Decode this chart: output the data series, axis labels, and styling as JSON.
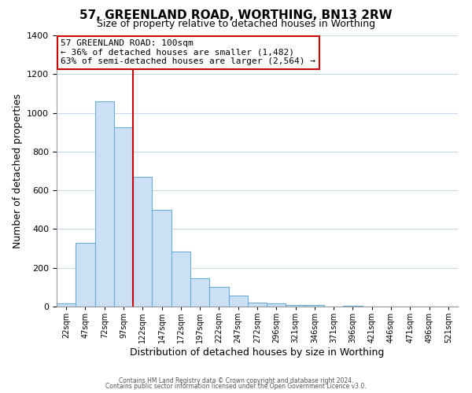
{
  "title": "57, GREENLAND ROAD, WORTHING, BN13 2RW",
  "subtitle": "Size of property relative to detached houses in Worthing",
  "xlabel": "Distribution of detached houses by size in Worthing",
  "ylabel": "Number of detached properties",
  "bar_labels": [
    "22sqm",
    "47sqm",
    "72sqm",
    "97sqm",
    "122sqm",
    "147sqm",
    "172sqm",
    "197sqm",
    "222sqm",
    "247sqm",
    "272sqm",
    "296sqm",
    "321sqm",
    "346sqm",
    "371sqm",
    "396sqm",
    "421sqm",
    "446sqm",
    "471sqm",
    "496sqm",
    "521sqm"
  ],
  "bar_values": [
    18,
    328,
    1060,
    925,
    670,
    500,
    285,
    148,
    100,
    55,
    20,
    15,
    10,
    8,
    0,
    5,
    0,
    0,
    0,
    0,
    0
  ],
  "bar_color": "#cce0f5",
  "bar_edge_color": "#6aaed6",
  "ylim": [
    0,
    1400
  ],
  "yticks": [
    0,
    200,
    400,
    600,
    800,
    1000,
    1200,
    1400
  ],
  "property_line_x": 3.5,
  "property_line_color": "#cc0000",
  "annotation_title": "57 GREENLAND ROAD: 100sqm",
  "annotation_line1": "← 36% of detached houses are smaller (1,482)",
  "annotation_line2": "63% of semi-detached houses are larger (2,564) →",
  "annotation_box_color": "#cc0000",
  "footnote1": "Contains HM Land Registry data © Crown copyright and database right 2024.",
  "footnote2": "Contains public sector information licensed under the Open Government Licence v3.0.",
  "background_color": "#ffffff",
  "grid_color": "#c8d8ec"
}
